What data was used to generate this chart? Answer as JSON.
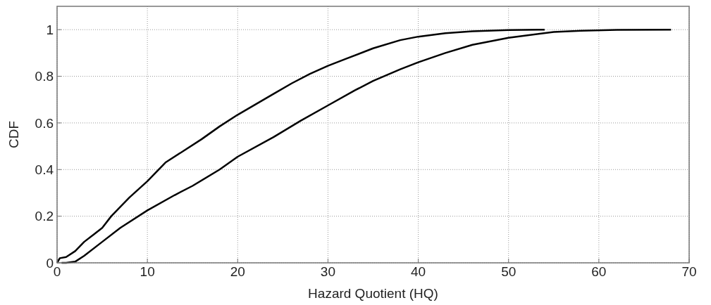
{
  "chart_data": {
    "type": "line",
    "xlabel": "Hazard Quotient (HQ)",
    "ylabel": "CDF",
    "xlim": [
      0,
      70
    ],
    "xticks": [
      0,
      10,
      20,
      30,
      40,
      50,
      60,
      70
    ],
    "ylim": [
      0,
      1.1
    ],
    "yticks": [
      0,
      0.2,
      0.4,
      0.6,
      0.8,
      1
    ],
    "grid": true,
    "marker": "none",
    "line_style": "solid",
    "series": [
      {
        "color": "#000000",
        "x": [
          0,
          0.3,
          1,
          2,
          3,
          4,
          5,
          6,
          8,
          10,
          12,
          14,
          16,
          18,
          20,
          22,
          24,
          26,
          28,
          30,
          32,
          35,
          38,
          40,
          43,
          46,
          50,
          54
        ],
        "values": [
          0,
          0.02,
          0.025,
          0.05,
          0.09,
          0.12,
          0.15,
          0.2,
          0.28,
          0.35,
          0.43,
          0.48,
          0.53,
          0.585,
          0.635,
          0.68,
          0.725,
          0.77,
          0.81,
          0.845,
          0.875,
          0.92,
          0.955,
          0.97,
          0.985,
          0.993,
          0.998,
          1
        ]
      },
      {
        "color": "#000000",
        "x": [
          0.5,
          1,
          2,
          3,
          5,
          7,
          10,
          13,
          15,
          18,
          20,
          24,
          27,
          30,
          33,
          35,
          38,
          40,
          43,
          46,
          50,
          55,
          58,
          62,
          68
        ],
        "values": [
          0,
          0,
          0.005,
          0.03,
          0.09,
          0.15,
          0.225,
          0.29,
          0.33,
          0.4,
          0.455,
          0.54,
          0.61,
          0.675,
          0.74,
          0.78,
          0.83,
          0.86,
          0.9,
          0.935,
          0.965,
          0.99,
          0.995,
          0.999,
          1
        ]
      }
    ]
  }
}
